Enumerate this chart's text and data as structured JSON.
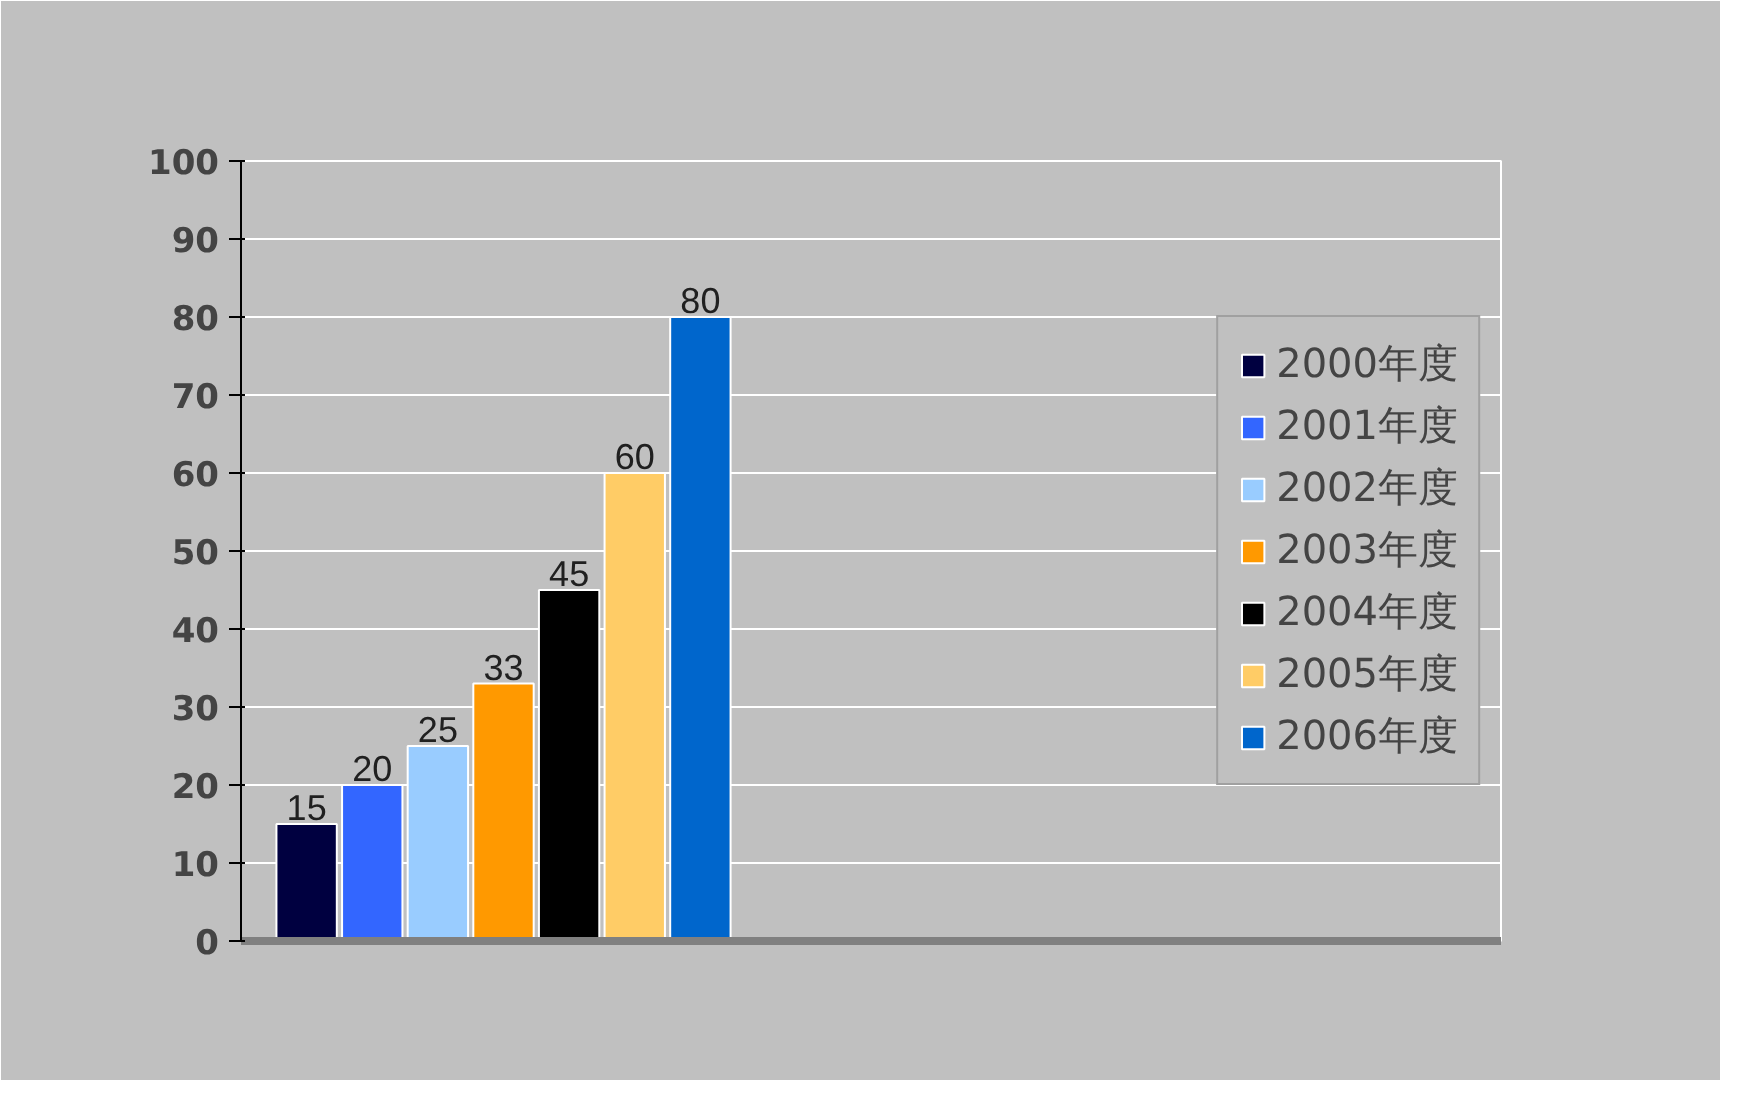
{
  "chart_data": {
    "type": "bar",
    "categories": [
      null
    ],
    "series": [
      {
        "name": "2000年度",
        "color": "#000040",
        "values": [
          15
        ]
      },
      {
        "name": "2001年度",
        "color": "#3366ff",
        "values": [
          20
        ]
      },
      {
        "name": "2002年度",
        "color": "#99ccff",
        "values": [
          25
        ]
      },
      {
        "name": "2003年度",
        "color": "#ff9900",
        "values": [
          33
        ]
      },
      {
        "name": "2004年度",
        "color": "#000000",
        "values": [
          45
        ]
      },
      {
        "name": "2005年度",
        "color": "#ffcc66",
        "values": [
          60
        ]
      },
      {
        "name": "2006年度",
        "color": "#0066cc",
        "values": [
          80
        ]
      }
    ],
    "ylim": [
      0,
      100
    ],
    "yticks": [
      0,
      10,
      20,
      30,
      40,
      50,
      60,
      70,
      80,
      90,
      100
    ],
    "grid": "y",
    "legend": "right",
    "data_labels": true
  }
}
